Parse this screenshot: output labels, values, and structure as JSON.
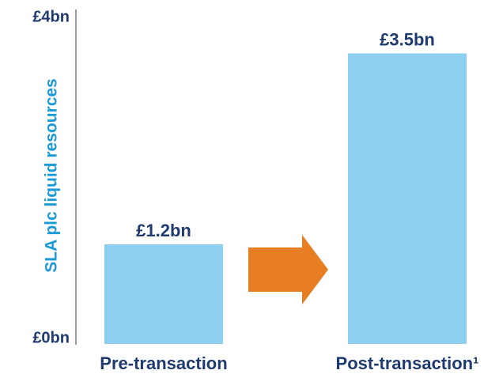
{
  "chart_data": {
    "type": "bar",
    "y_label": "SLA plc liquid resources",
    "categories": [
      "Pre-transaction",
      "Post-transaction¹"
    ],
    "values": [
      1.2,
      3.5
    ],
    "value_labels": [
      "£1.2bn",
      "£3.5bn"
    ],
    "color": "#8ecfef",
    "ylim": [
      0,
      4
    ],
    "yticks": [
      {
        "value": 0,
        "label": "£0bn"
      },
      {
        "value": 4,
        "label": "£4bn"
      }
    ],
    "grid": false
  }
}
